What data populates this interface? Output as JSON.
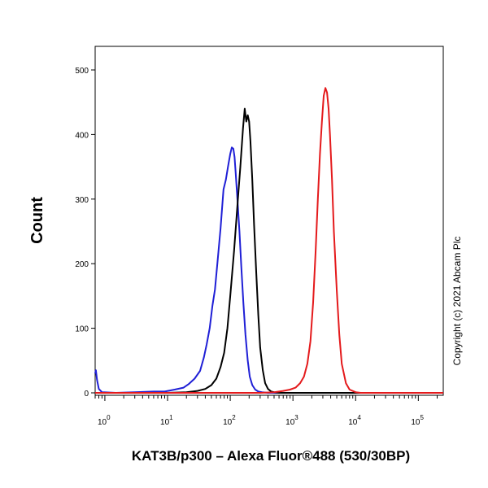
{
  "chart_data": {
    "type": "line",
    "title": "",
    "xlabel": "KAT3B/p300 – Alexa Fluor®488 (530/30BP)",
    "ylabel": "Count",
    "x_scale": "log",
    "xlim": [
      0.7,
      250000
    ],
    "ylim": [
      0,
      520
    ],
    "x_ticks": [
      {
        "base": "10",
        "exp": "0",
        "value": 1
      },
      {
        "base": "10",
        "exp": "1",
        "value": 10
      },
      {
        "base": "10",
        "exp": "2",
        "value": 100
      },
      {
        "base": "10",
        "exp": "3",
        "value": 1000
      },
      {
        "base": "10",
        "exp": "4",
        "value": 10000
      },
      {
        "base": "10",
        "exp": "5",
        "value": 100000
      }
    ],
    "y_ticks": [
      "0",
      "100",
      "200",
      "300",
      "400",
      "500"
    ],
    "y_tick_values": [
      0,
      100,
      200,
      300,
      400,
      500
    ],
    "grid": false,
    "legend": "none",
    "series": [
      {
        "color": "#1f1fd6",
        "x": [
          0.7,
          0.72,
          0.75,
          0.8,
          0.9,
          1.5,
          3,
          6,
          9,
          13,
          18,
          22,
          27,
          33,
          38,
          42,
          47,
          52,
          57,
          63,
          70,
          78,
          85,
          92,
          100,
          106,
          112,
          117,
          122,
          130,
          140,
          150,
          162,
          175,
          190,
          205,
          225,
          250,
          280,
          320,
          400,
          600,
          1000,
          250000
        ],
        "y": [
          30,
          35,
          20,
          6,
          1,
          0,
          1,
          2,
          2,
          5,
          8,
          14,
          22,
          34,
          55,
          75,
          100,
          135,
          160,
          205,
          255,
          315,
          330,
          350,
          370,
          380,
          378,
          365,
          340,
          300,
          250,
          195,
          140,
          90,
          50,
          25,
          12,
          5,
          2,
          1,
          0,
          0,
          0,
          0
        ]
      },
      {
        "color": "#000000",
        "x": [
          0.7,
          10,
          20,
          30,
          40,
          50,
          60,
          70,
          80,
          90,
          100,
          115,
          130,
          145,
          160,
          170,
          180,
          190,
          200,
          210,
          225,
          240,
          260,
          280,
          300,
          330,
          360,
          400,
          450,
          500,
          600,
          800,
          250000
        ],
        "y": [
          0,
          0,
          1,
          3,
          6,
          12,
          22,
          40,
          62,
          100,
          150,
          220,
          290,
          350,
          410,
          440,
          420,
          430,
          420,
          390,
          330,
          260,
          185,
          120,
          70,
          35,
          15,
          6,
          2,
          1,
          0,
          0,
          0
        ]
      },
      {
        "color": "#e41a1c",
        "x": [
          0.7,
          300,
          500,
          700,
          900,
          1100,
          1300,
          1500,
          1700,
          1900,
          2100,
          2300,
          2500,
          2700,
          2900,
          3100,
          3300,
          3500,
          3700,
          3900,
          4200,
          4500,
          5000,
          5500,
          6000,
          7000,
          8000,
          10000,
          12000,
          15000,
          250000
        ],
        "y": [
          0,
          0,
          1,
          3,
          5,
          8,
          15,
          25,
          45,
          80,
          140,
          220,
          300,
          370,
          420,
          460,
          472,
          465,
          440,
          400,
          330,
          250,
          160,
          90,
          45,
          15,
          5,
          1,
          0,
          0,
          0
        ]
      }
    ]
  },
  "copyright": "Copyright (c) 2021 Abcam Plc"
}
